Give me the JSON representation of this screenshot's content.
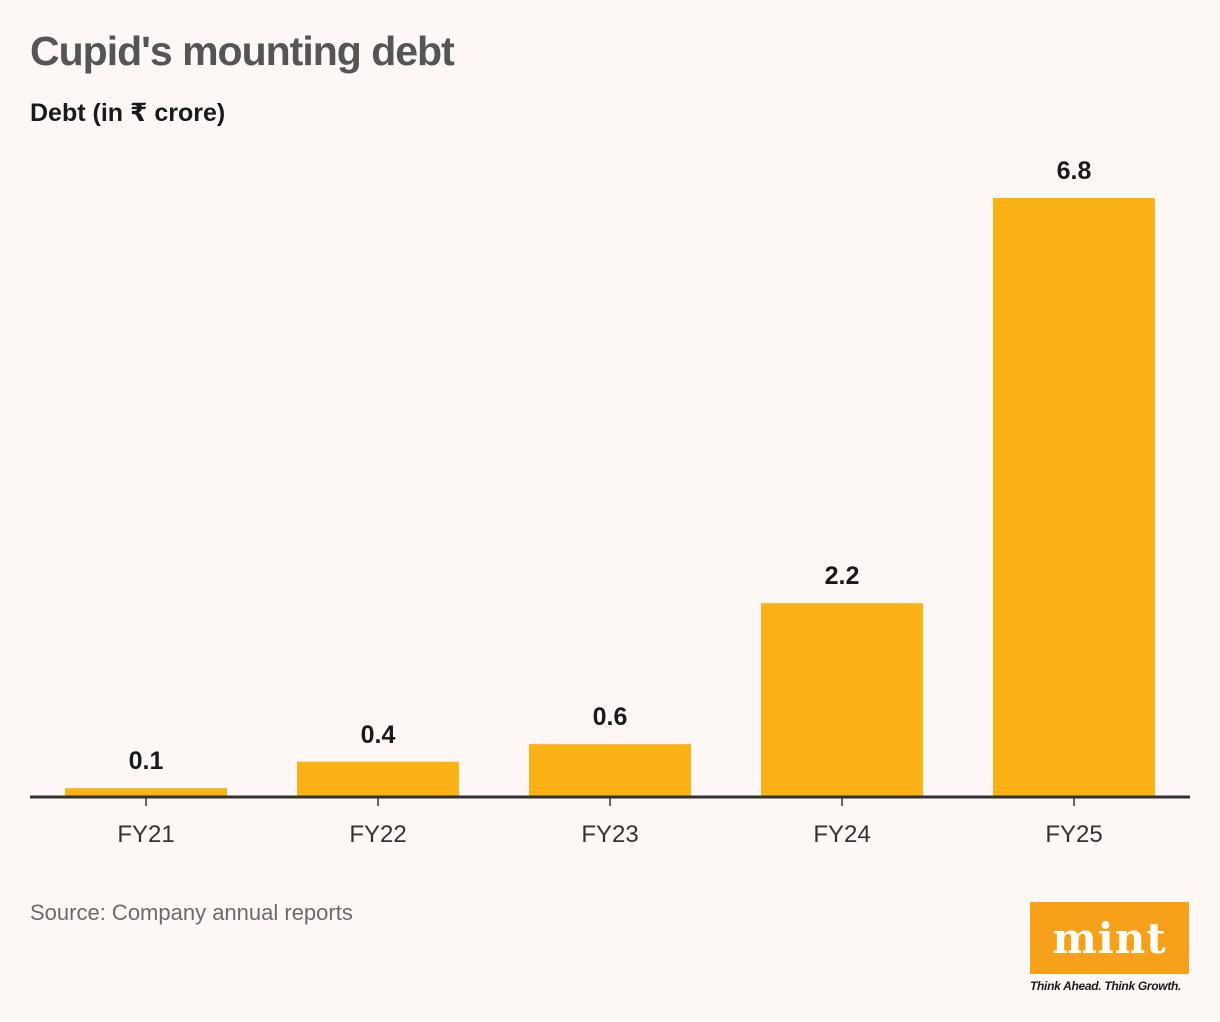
{
  "header": {
    "title": "Cupid's mounting debt",
    "subtitle": "Debt (in ₹ crore)"
  },
  "footer": {
    "source": "Source: Company annual reports",
    "logo_text": "mint",
    "tagline": "Think Ahead. Think Growth."
  },
  "colors": {
    "bar": "#fbb216",
    "axis": "#333333",
    "background": "#fdf8f5",
    "logo": "#f7a11b"
  },
  "chart_data": {
    "type": "bar",
    "title": "Cupid's mounting debt",
    "subtitle": "Debt (in ₹ crore)",
    "xlabel": "",
    "ylabel": "",
    "categories": [
      "FY21",
      "FY22",
      "FY23",
      "FY24",
      "FY25"
    ],
    "values": [
      0.1,
      0.4,
      0.6,
      2.2,
      6.8
    ],
    "value_labels": [
      "0.1",
      "0.4",
      "0.6",
      "2.2",
      "6.8"
    ],
    "ylim": [
      0,
      6.8
    ],
    "grid": false,
    "legend": "none"
  }
}
